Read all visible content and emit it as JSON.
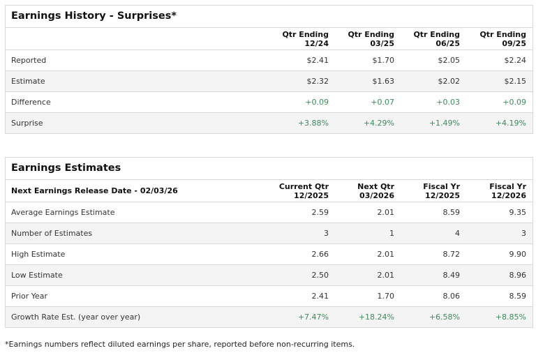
{
  "history": {
    "title": "Earnings History - Surprises*",
    "columns": [
      [
        "Qtr Ending",
        "12/24"
      ],
      [
        "Qtr Ending",
        "03/25"
      ],
      [
        "Qtr Ending",
        "06/25"
      ],
      [
        "Qtr Ending",
        "09/25"
      ]
    ],
    "rows": [
      {
        "label": "Reported",
        "values": [
          "$2.41",
          "$1.70",
          "$2.05",
          "$2.24"
        ]
      },
      {
        "label": "Estimate",
        "values": [
          "$2.32",
          "$1.63",
          "$2.02",
          "$2.15"
        ]
      },
      {
        "label": "Difference",
        "values": [
          "+0.09",
          "+0.07",
          "+0.03",
          "+0.09"
        ]
      },
      {
        "label": "Surprise",
        "values": [
          "+3.88%",
          "+4.29%",
          "+1.49%",
          "+4.19%"
        ]
      }
    ]
  },
  "estimates": {
    "title": "Earnings Estimates",
    "release_label": "Next Earnings Release Date - 02/03/26",
    "columns": [
      [
        "Current Qtr",
        "12/2025"
      ],
      [
        "Next Qtr",
        "03/2026"
      ],
      [
        "Fiscal Yr",
        "12/2025"
      ],
      [
        "Fiscal Yr",
        "12/2026"
      ]
    ],
    "rows": [
      {
        "label": "Average Earnings Estimate",
        "values": [
          "2.59",
          "2.01",
          "8.59",
          "9.35"
        ]
      },
      {
        "label": "Number of Estimates",
        "values": [
          "3",
          "1",
          "4",
          "3"
        ]
      },
      {
        "label": "High Estimate",
        "values": [
          "2.66",
          "2.01",
          "8.72",
          "9.90"
        ]
      },
      {
        "label": "Low Estimate",
        "values": [
          "2.50",
          "2.01",
          "8.49",
          "8.96"
        ]
      },
      {
        "label": "Prior Year",
        "values": [
          "2.41",
          "1.70",
          "8.06",
          "8.59"
        ]
      },
      {
        "label": "Growth Rate Est. (year over year)",
        "values": [
          "+7.47%",
          "+18.24%",
          "+6.58%",
          "+8.85%"
        ]
      }
    ]
  },
  "footnote": "*Earnings numbers reflect diluted earnings per share, reported before non-recurring items.",
  "colors": {
    "positive": "#3d8a5c",
    "stripe": "#f4f4f4",
    "border": "#d8d8d8"
  }
}
